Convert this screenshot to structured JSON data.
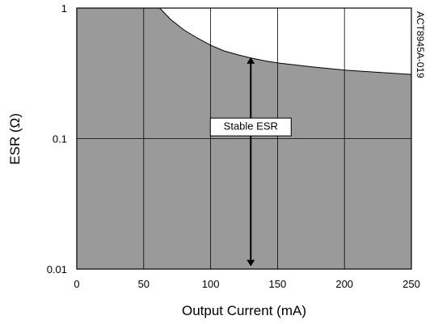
{
  "chart_data": {
    "type": "area",
    "xlabel": "Output Current (mA)",
    "ylabel": "ESR (Ω)",
    "xlim": [
      0,
      250
    ],
    "ylim": [
      0.01,
      1
    ],
    "y_scale": "log",
    "x_ticks": [
      "0",
      "50",
      "100",
      "150",
      "200",
      "250"
    ],
    "y_ticks": [
      "0.01",
      "0.1",
      "1"
    ],
    "grid": true,
    "series": [
      {
        "name": "Stable ESR",
        "fill": "#9a9a9a",
        "lower": 0.01,
        "upper_x": [
          0,
          62,
          70,
          80,
          90,
          100,
          110,
          120,
          130,
          140,
          150,
          175,
          200,
          225,
          250
        ],
        "upper_y": [
          1,
          1,
          0.82,
          0.68,
          0.59,
          0.52,
          0.47,
          0.44,
          0.415,
          0.395,
          0.38,
          0.355,
          0.335,
          0.322,
          0.31
        ]
      }
    ],
    "annotations": [
      {
        "text": "Stable ESR",
        "x": 130,
        "y": 0.08,
        "arrow": "double",
        "arrow_from": 0.42,
        "arrow_to": 0.0105
      }
    ],
    "side_label": "ACT8945A-019"
  }
}
